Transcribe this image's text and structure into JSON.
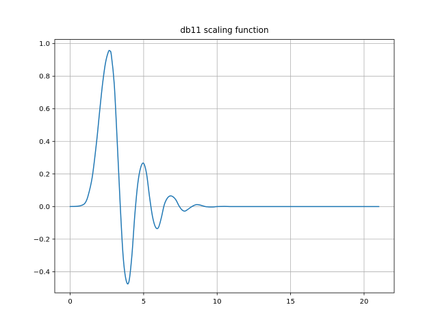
{
  "chart_data": {
    "type": "line",
    "title": "db11 scaling function",
    "xlabel": "",
    "ylabel": "",
    "xlim": [
      -1.05,
      22.05
    ],
    "ylim": [
      -0.5295,
      1.0255
    ],
    "xticks": [
      0,
      5,
      10,
      15,
      20
    ],
    "xtick_labels": [
      "0",
      "5",
      "10",
      "15",
      "20"
    ],
    "yticks": [
      -0.4,
      -0.2,
      0.0,
      0.2,
      0.4,
      0.6,
      0.8,
      1.0
    ],
    "ytick_labels": [
      "−0.4",
      "−0.2",
      "0.0",
      "0.2",
      "0.4",
      "0.6",
      "0.8",
      "1.0"
    ],
    "grid": true,
    "series": [
      {
        "color": "#1f77b4",
        "x": [
          0,
          0.5,
          0.8,
          1.0,
          1.2,
          1.5,
          1.8,
          2.0,
          2.2,
          2.4,
          2.6,
          2.7,
          2.8,
          3.0,
          3.2,
          3.4,
          3.6,
          3.8,
          4.0,
          4.2,
          4.4,
          4.6,
          4.8,
          5.0,
          5.2,
          5.4,
          5.6,
          5.8,
          6.0,
          6.2,
          6.4,
          6.6,
          6.8,
          7.0,
          7.2,
          7.4,
          7.6,
          7.8,
          8.0,
          8.2,
          8.4,
          8.6,
          8.8,
          9.0,
          9.2,
          9.4,
          9.6,
          9.8,
          10.0,
          10.5,
          11.0,
          12.0,
          14.0,
          16.0,
          18.0,
          20.0,
          21.0
        ],
        "y": [
          0.0,
          0.002,
          0.008,
          0.02,
          0.06,
          0.18,
          0.4,
          0.58,
          0.75,
          0.88,
          0.95,
          0.955,
          0.93,
          0.75,
          0.4,
          0.02,
          -0.3,
          -0.45,
          -0.46,
          -0.3,
          -0.05,
          0.14,
          0.24,
          0.265,
          0.2,
          0.06,
          -0.06,
          -0.125,
          -0.13,
          -0.07,
          0.01,
          0.05,
          0.065,
          0.06,
          0.04,
          0.005,
          -0.02,
          -0.028,
          -0.018,
          -0.005,
          0.006,
          0.012,
          0.01,
          0.005,
          0.0,
          -0.002,
          -0.003,
          -0.002,
          0.0,
          0.001,
          0.0,
          0.0,
          0.0,
          0.0,
          0.0,
          0.0,
          0.0
        ]
      }
    ]
  }
}
